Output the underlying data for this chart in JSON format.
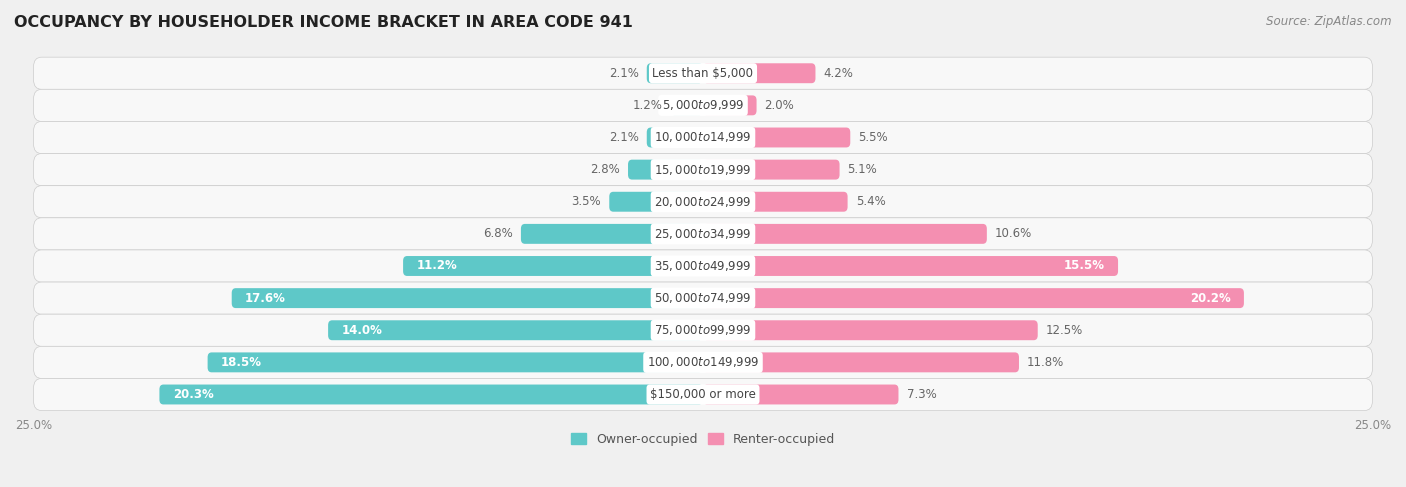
{
  "title": "OCCUPANCY BY HOUSEHOLDER INCOME BRACKET IN AREA CODE 941",
  "source": "Source: ZipAtlas.com",
  "categories": [
    "Less than $5,000",
    "$5,000 to $9,999",
    "$10,000 to $14,999",
    "$15,000 to $19,999",
    "$20,000 to $24,999",
    "$25,000 to $34,999",
    "$35,000 to $49,999",
    "$50,000 to $74,999",
    "$75,000 to $99,999",
    "$100,000 to $149,999",
    "$150,000 or more"
  ],
  "owner_values": [
    2.1,
    1.2,
    2.1,
    2.8,
    3.5,
    6.8,
    11.2,
    17.6,
    14.0,
    18.5,
    20.3
  ],
  "renter_values": [
    4.2,
    2.0,
    5.5,
    5.1,
    5.4,
    10.6,
    15.5,
    20.2,
    12.5,
    11.8,
    7.3
  ],
  "owner_color": "#5EC8C8",
  "renter_color": "#F48FB1",
  "bar_height": 0.62,
  "xlim": 25.0,
  "background_color": "#f0f0f0",
  "row_bg_color": "#f8f8f8",
  "title_fontsize": 11.5,
  "label_fontsize": 8.5,
  "source_fontsize": 8.5,
  "legend_fontsize": 9,
  "axis_label_fontsize": 8.5,
  "owner_inside_threshold": 10.0,
  "renter_inside_threshold": 14.0
}
